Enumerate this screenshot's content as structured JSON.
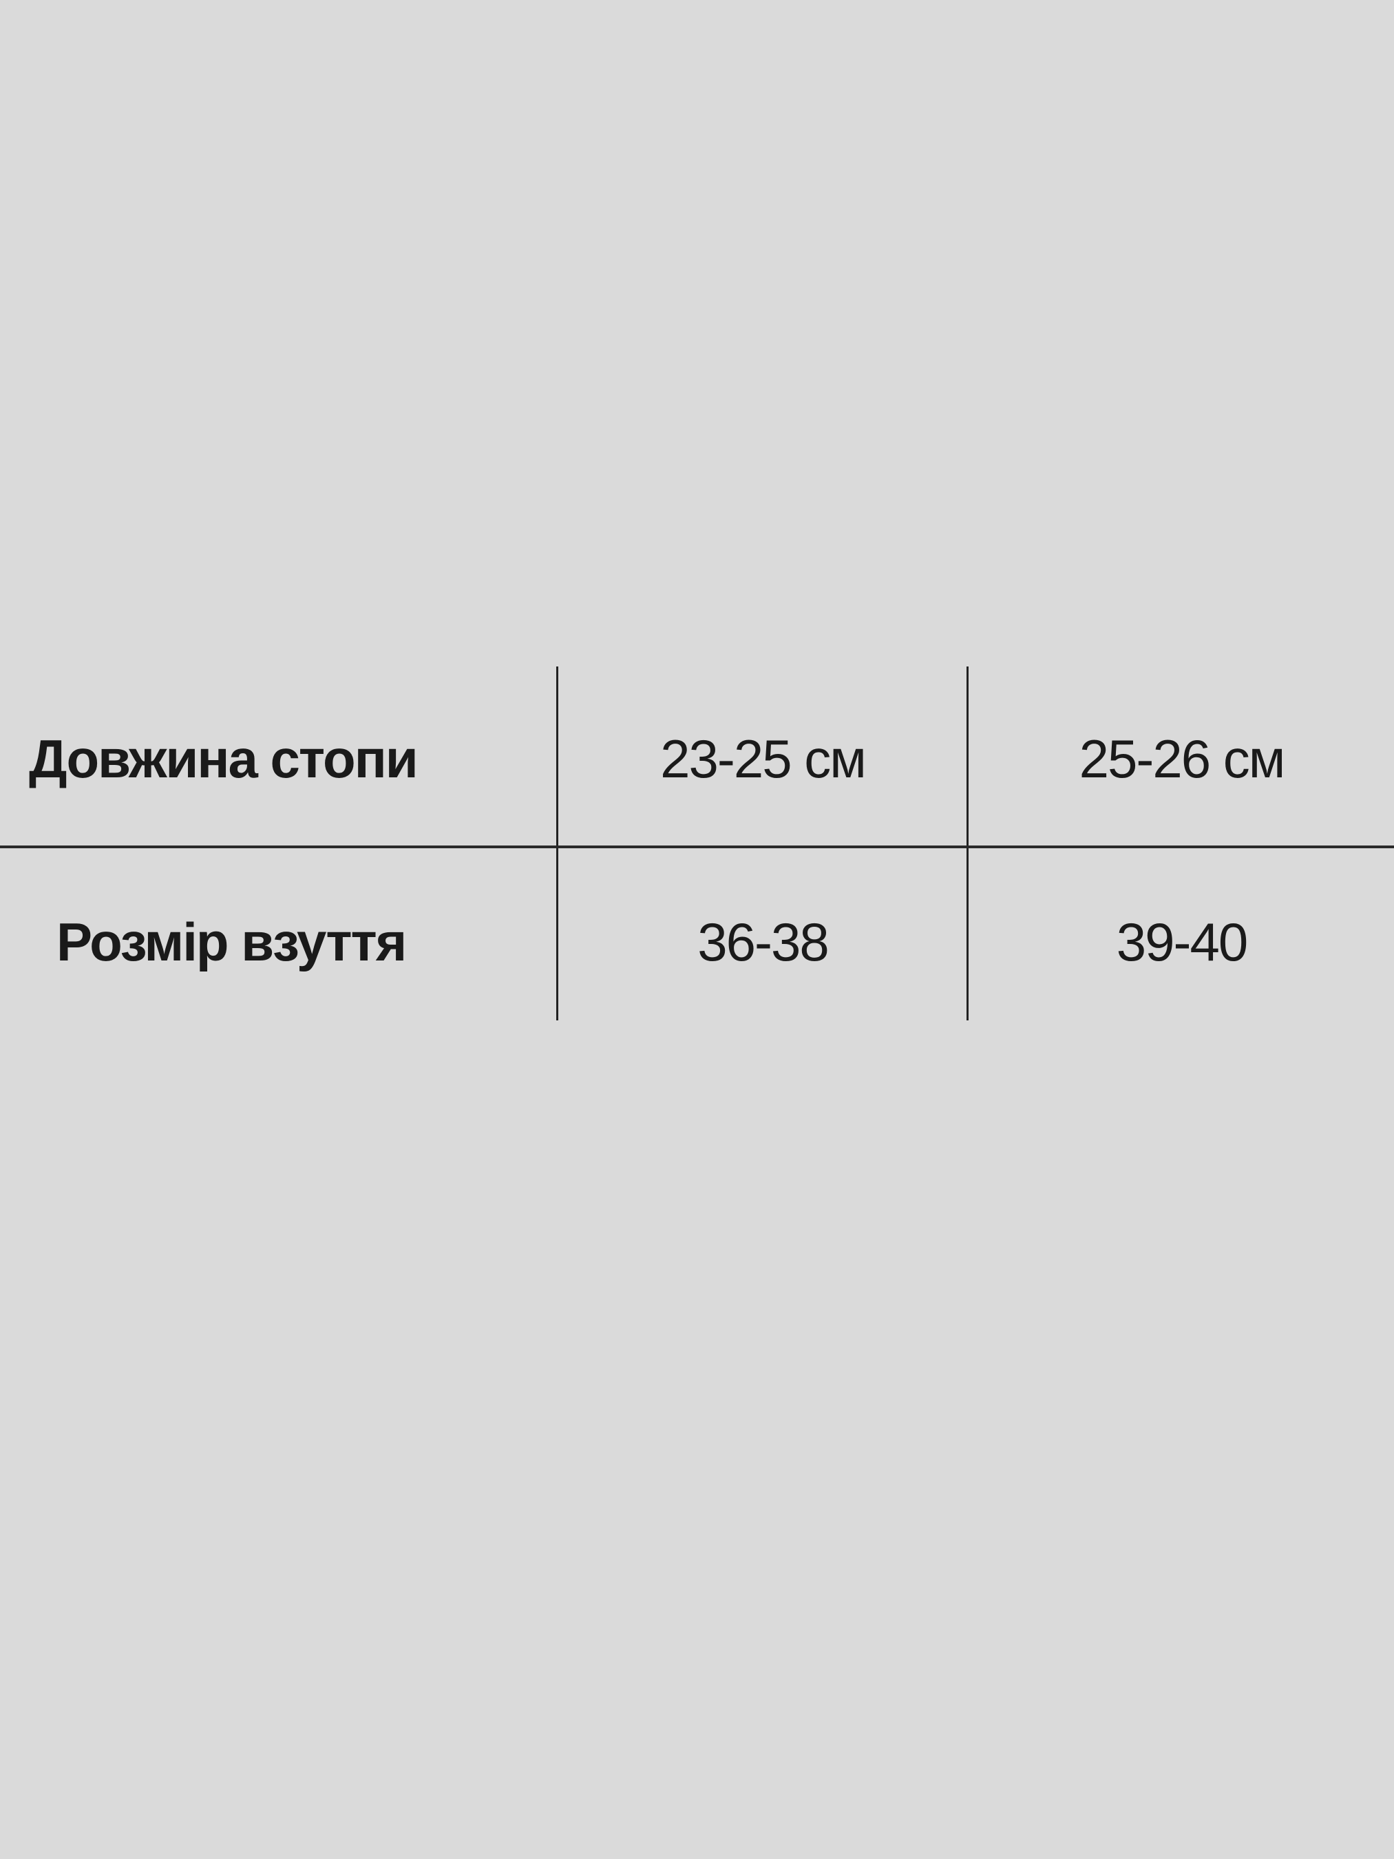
{
  "table": {
    "rows": [
      {
        "label": "Довжина стопи",
        "values": [
          "23-25 см",
          "25-26 см"
        ]
      },
      {
        "label": "Розмір взуття",
        "values": [
          "36-38",
          "39-40"
        ]
      }
    ]
  },
  "colors": {
    "background": "#dadada",
    "text": "#1a1a1a",
    "lines": "#222222"
  }
}
